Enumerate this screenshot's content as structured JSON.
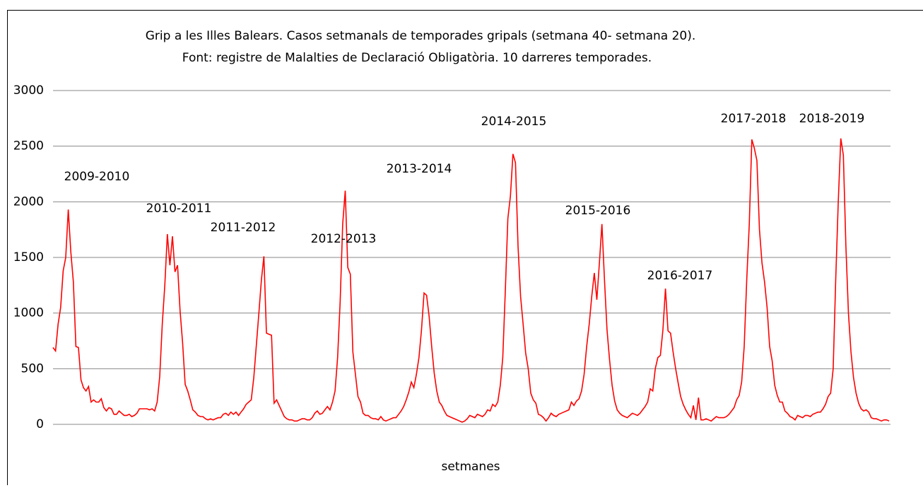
{
  "chart_data": {
    "type": "line",
    "title": "Grip a les Illes Balears.  Casos setmanals de temporades gripals (setmana 40- setmana 20).",
    "subtitle": "Font: registre de Malalties de Declaració Obligatòria. 10 darreres temporades.",
    "x_label": "setmanes",
    "annotations": [
      "2009-2010",
      "2010-2011",
      "2011-2012",
      "2012-2013",
      "2013-2014",
      "2014-2015",
      "2015-2016",
      "2016-2017",
      "2017-2018",
      "2018-2019"
    ],
    "series": [
      {
        "color": "#ff0000",
        "values": [
          690,
          660,
          900,
          1050,
          1380,
          1500,
          1930,
          1550,
          1280,
          700,
          690,
          400,
          330,
          300,
          340,
          200,
          220,
          200,
          200,
          230,
          150,
          120,
          150,
          140,
          90,
          90,
          120,
          100,
          80,
          80,
          90,
          70,
          80,
          100,
          140,
          140,
          140,
          140,
          130,
          140,
          120,
          200,
          430,
          900,
          1250,
          1710,
          1430,
          1690,
          1370,
          1430,
          1020,
          730,
          360,
          300,
          220,
          130,
          110,
          80,
          70,
          70,
          50,
          40,
          50,
          40,
          50,
          60,
          60,
          90,
          100,
          80,
          110,
          90,
          110,
          80,
          110,
          140,
          180,
          200,
          220,
          420,
          710,
          1000,
          1300,
          1510,
          820,
          810,
          800,
          190,
          220,
          170,
          120,
          70,
          50,
          40,
          40,
          30,
          30,
          40,
          50,
          50,
          40,
          40,
          60,
          100,
          120,
          90,
          100,
          130,
          160,
          130,
          200,
          300,
          600,
          1100,
          1800,
          2100,
          1410,
          1350,
          650,
          450,
          250,
          200,
          100,
          80,
          80,
          60,
          50,
          50,
          40,
          70,
          40,
          30,
          40,
          50,
          60,
          60,
          90,
          120,
          160,
          220,
          290,
          380,
          330,
          450,
          600,
          850,
          1180,
          1160,
          970,
          700,
          460,
          300,
          200,
          170,
          120,
          80,
          70,
          60,
          50,
          40,
          30,
          20,
          30,
          50,
          80,
          70,
          60,
          90,
          80,
          70,
          90,
          130,
          120,
          180,
          160,
          200,
          350,
          600,
          1200,
          1850,
          2050,
          2430,
          2350,
          1600,
          1150,
          900,
          640,
          500,
          280,
          220,
          190,
          90,
          80,
          60,
          30,
          60,
          100,
          80,
          70,
          90,
          100,
          110,
          120,
          130,
          200,
          170,
          210,
          230,
          300,
          450,
          700,
          900,
          1150,
          1360,
          1120,
          1450,
          1800,
          1300,
          850,
          580,
          350,
          210,
          130,
          100,
          80,
          70,
          60,
          80,
          100,
          90,
          80,
          100,
          130,
          160,
          200,
          320,
          300,
          500,
          600,
          620,
          850,
          1220,
          840,
          820,
          650,
          500,
          370,
          250,
          180,
          130,
          90,
          60,
          170,
          40,
          240,
          40,
          40,
          50,
          40,
          30,
          50,
          70,
          60,
          60,
          60,
          70,
          90,
          120,
          150,
          220,
          260,
          380,
          700,
          1300,
          1800,
          2560,
          2480,
          2370,
          1750,
          1450,
          1280,
          1050,
          700,
          570,
          350,
          260,
          200,
          200,
          120,
          100,
          70,
          60,
          40,
          80,
          70,
          60,
          80,
          80,
          70,
          90,
          100,
          110,
          110,
          140,
          180,
          250,
          280,
          500,
          1300,
          2000,
          2570,
          2420,
          1600,
          1000,
          650,
          420,
          280,
          190,
          140,
          120,
          130,
          110,
          60,
          50,
          50,
          40,
          30,
          40,
          40,
          30
        ]
      }
    ],
    "ylim": [
      0,
      3000
    ],
    "yticks": [
      0,
      500,
      1000,
      1500,
      2000,
      2500,
      3000
    ],
    "grid": true
  }
}
